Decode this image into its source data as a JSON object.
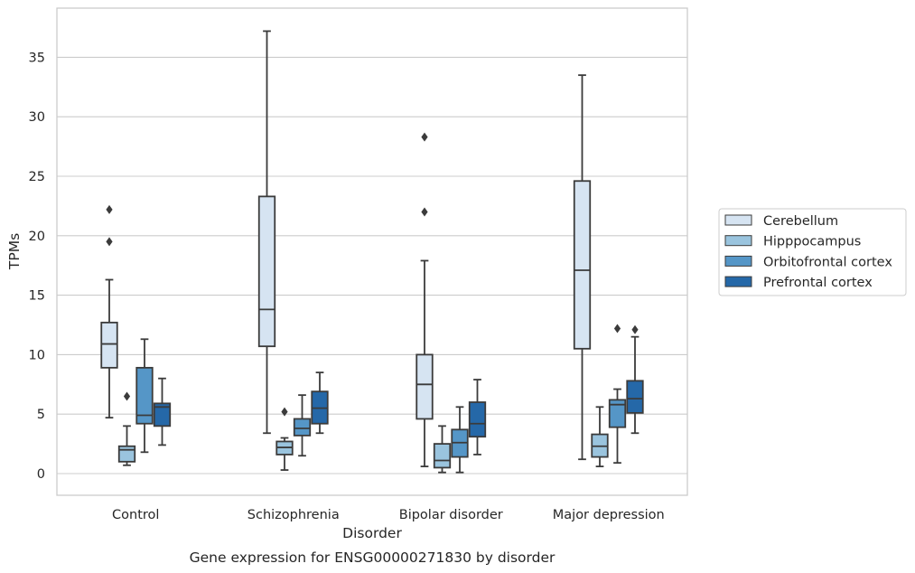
{
  "chart_data": {
    "type": "box",
    "title": "",
    "caption": "Gene expression for ENSG00000271830 by disorder",
    "xlabel": "Disorder",
    "ylabel": "TPMs",
    "ylim": [
      -1.8,
      39.8
    ],
    "yticks": [
      0,
      5,
      10,
      15,
      20,
      25,
      30,
      35
    ],
    "grid": "horizontal",
    "legend_position": "right",
    "categories": [
      "Control",
      "Schizophrenia",
      "Bipolar disorder",
      "Major depression"
    ],
    "series": [
      {
        "name": "Cerebellum",
        "color": "#d6e4f2",
        "boxes": [
          {
            "whisker_low": 4.7,
            "q1": 8.9,
            "median": 10.9,
            "q3": 12.7,
            "whisker_high": 16.3,
            "outliers": [
              19.5,
              22.2
            ]
          },
          {
            "whisker_low": 3.4,
            "q1": 10.7,
            "median": 13.8,
            "q3": 23.3,
            "whisker_high": 37.2,
            "outliers": []
          },
          {
            "whisker_low": 0.6,
            "q1": 4.6,
            "median": 7.5,
            "q3": 10.0,
            "whisker_high": 17.9,
            "outliers": [
              22.0,
              28.3
            ]
          },
          {
            "whisker_low": 1.2,
            "q1": 10.5,
            "median": 17.1,
            "q3": 24.6,
            "whisker_high": 33.5,
            "outliers": []
          }
        ]
      },
      {
        "name": "Hipppocampus",
        "color": "#9ac4de",
        "boxes": [
          {
            "whisker_low": 0.7,
            "q1": 1.0,
            "median": 2.0,
            "q3": 2.3,
            "whisker_high": 4.0,
            "outliers": [
              6.5
            ]
          },
          {
            "whisker_low": 0.3,
            "q1": 1.6,
            "median": 2.2,
            "q3": 2.7,
            "whisker_high": 3.0,
            "outliers": [
              5.2
            ]
          },
          {
            "whisker_low": 0.1,
            "q1": 0.5,
            "median": 1.1,
            "q3": 2.5,
            "whisker_high": 4.0,
            "outliers": []
          },
          {
            "whisker_low": 0.6,
            "q1": 1.4,
            "median": 2.3,
            "q3": 3.3,
            "whisker_high": 5.6,
            "outliers": []
          }
        ]
      },
      {
        "name": "Orbitofrontal cortex",
        "color": "#5596c7",
        "boxes": [
          {
            "whisker_low": 1.8,
            "q1": 4.2,
            "median": 4.9,
            "q3": 8.9,
            "whisker_high": 11.3,
            "outliers": []
          },
          {
            "whisker_low": 1.5,
            "q1": 3.2,
            "median": 3.8,
            "q3": 4.6,
            "whisker_high": 6.6,
            "outliers": []
          },
          {
            "whisker_low": 0.1,
            "q1": 1.4,
            "median": 2.6,
            "q3": 3.7,
            "whisker_high": 5.6,
            "outliers": []
          },
          {
            "whisker_low": 0.9,
            "q1": 3.9,
            "median": 5.8,
            "q3": 6.2,
            "whisker_high": 7.1,
            "outliers": [
              12.2
            ]
          }
        ]
      },
      {
        "name": "Prefrontal cortex",
        "color": "#2568a8",
        "boxes": [
          {
            "whisker_low": 2.4,
            "q1": 4.0,
            "median": 5.6,
            "q3": 5.9,
            "whisker_high": 8.0,
            "outliers": []
          },
          {
            "whisker_low": 3.4,
            "q1": 4.2,
            "median": 5.5,
            "q3": 6.9,
            "whisker_high": 8.5,
            "outliers": []
          },
          {
            "whisker_low": 1.6,
            "q1": 3.1,
            "median": 4.2,
            "q3": 6.0,
            "whisker_high": 7.9,
            "outliers": []
          },
          {
            "whisker_low": 3.4,
            "q1": 5.1,
            "median": 6.3,
            "q3": 7.8,
            "whisker_high": 11.5,
            "outliers": [
              12.1
            ]
          }
        ]
      }
    ]
  }
}
